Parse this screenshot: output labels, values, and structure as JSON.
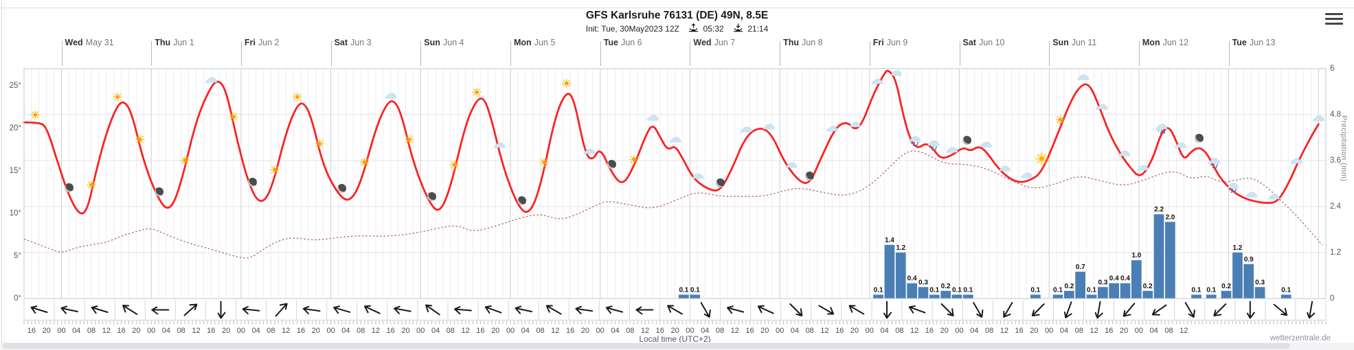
{
  "header": {
    "title": "GFS Karlsruhe 76131 (DE) 49N, 8.5E",
    "init_label": "Init: Tue, 30May2023 12Z",
    "sunrise_time": "05:32",
    "sunset_time": "21:14"
  },
  "watermark": {
    "text": "wetterzentrale.de"
  },
  "days": [
    {
      "name": "Wed",
      "date": "May 31"
    },
    {
      "name": "Thu",
      "date": "Jun 1"
    },
    {
      "name": "Fri",
      "date": "Jun 2"
    },
    {
      "name": "Sat",
      "date": "Jun 3"
    },
    {
      "name": "Sun",
      "date": "Jun 4"
    },
    {
      "name": "Mon",
      "date": "Jun 5"
    },
    {
      "name": "Tue",
      "date": "Jun 6"
    },
    {
      "name": "Wed",
      "date": "Jun 7"
    },
    {
      "name": "Thu",
      "date": "Jun 8"
    },
    {
      "name": "Fri",
      "date": "Jun 9"
    },
    {
      "name": "Sat",
      "date": "Jun 10"
    },
    {
      "name": "Sun",
      "date": "Jun 11"
    },
    {
      "name": "Mon",
      "date": "Jun 12"
    },
    {
      "name": "Tue",
      "date": "Jun 13"
    }
  ],
  "y_axis_left": {
    "unit": "°C",
    "ticks": [
      [
        25,
        "25°"
      ],
      [
        20,
        "20°"
      ],
      [
        15,
        "15°"
      ],
      [
        10,
        "10°"
      ],
      [
        5,
        "5°"
      ],
      [
        0,
        "0°"
      ]
    ]
  },
  "y_axis_right": {
    "caption": "Precipitation (mm)",
    "ticks": [
      [
        6,
        "6"
      ],
      [
        4.8,
        "4.8"
      ],
      [
        3.6,
        "3.6"
      ],
      [
        2.4,
        "2.4"
      ],
      [
        1.2,
        "1.2"
      ],
      [
        0,
        "0"
      ]
    ]
  },
  "x_axis": {
    "caption": "Local time (UTC+2)",
    "hour_labels": [
      "16",
      "20",
      "00",
      "04",
      "08",
      "12",
      "16",
      "20",
      "00",
      "04",
      "08",
      "12",
      "16",
      "20",
      "00",
      "04",
      "08",
      "12",
      "16",
      "20",
      "00",
      "04",
      "08",
      "12",
      "16",
      "20",
      "00",
      "04",
      "08",
      "12",
      "16",
      "20",
      "00",
      "04",
      "08",
      "12",
      "16",
      "20",
      "00",
      "04",
      "08",
      "12",
      "16",
      "20",
      "00",
      "04",
      "08",
      "12",
      "16",
      "20",
      "00",
      "04",
      "08",
      "12",
      "16",
      "20",
      "00",
      "04",
      "08",
      "12",
      "16",
      "20",
      "00",
      "04",
      "08",
      "12",
      "16",
      "20",
      "00",
      "04",
      "08",
      "12",
      "16",
      "20",
      "00",
      "04",
      "08",
      "12"
    ]
  },
  "colors": {
    "temperature_line": "#fb2222",
    "dewpoint_line": "#b06b6b",
    "precip_bar": "#4a7fb5",
    "grid_minor": "#ededf2",
    "grid_day": "#cdcdd6",
    "plot_border": "#bcc7d0"
  },
  "chart_data": {
    "type": "meteogram (line + bar)",
    "model": "GFS",
    "station": "Karlsruhe 76131 (DE) 49N, 8.5E",
    "time_axis": {
      "start": "Tue May 30 14:00 local (UTC+2)",
      "hours_span": 348,
      "hour_label_step": 4,
      "first_label_offset_h": 2
    },
    "temp_axis_c": {
      "min": 0,
      "max": 27,
      "tick_step": 5
    },
    "precip_axis_mm": {
      "min": 0,
      "max": 6,
      "tick_step": 1.2
    },
    "temperature_c": [
      [
        0,
        20.7
      ],
      [
        4,
        20.7
      ],
      [
        6,
        20.2
      ],
      [
        9,
        16
      ],
      [
        12,
        12
      ],
      [
        15,
        9.7
      ],
      [
        17,
        10.5
      ],
      [
        19,
        14.5
      ],
      [
        22,
        19.5
      ],
      [
        25,
        22.8
      ],
      [
        27,
        23.2
      ],
      [
        29,
        21.5
      ],
      [
        32,
        16
      ],
      [
        36,
        11.5
      ],
      [
        39,
        10.2
      ],
      [
        42,
        13.5
      ],
      [
        46,
        21
      ],
      [
        50,
        25
      ],
      [
        52,
        25.7
      ],
      [
        54,
        24.5
      ],
      [
        57,
        18.5
      ],
      [
        60,
        13.5
      ],
      [
        63,
        11
      ],
      [
        66,
        12.5
      ],
      [
        70,
        19.5
      ],
      [
        73,
        22.8
      ],
      [
        75,
        23
      ],
      [
        77,
        21
      ],
      [
        80,
        15.5
      ],
      [
        84,
        12.2
      ],
      [
        87,
        11.3
      ],
      [
        90,
        13.5
      ],
      [
        94,
        20
      ],
      [
        97,
        23
      ],
      [
        99,
        23.3
      ],
      [
        101,
        21.5
      ],
      [
        104,
        16
      ],
      [
        108,
        11.5
      ],
      [
        111,
        9.9
      ],
      [
        114,
        13
      ],
      [
        118,
        20.5
      ],
      [
        121,
        23.4
      ],
      [
        123,
        23.6
      ],
      [
        125,
        21
      ],
      [
        128,
        15.5
      ],
      [
        132,
        10.8
      ],
      [
        135,
        9.8
      ],
      [
        138,
        13
      ],
      [
        142,
        21.5
      ],
      [
        145,
        24.4
      ],
      [
        147,
        23.5
      ],
      [
        150,
        17
      ],
      [
        152,
        16.2
      ],
      [
        154,
        17.8
      ],
      [
        157,
        14.8
      ],
      [
        160,
        13.2
      ],
      [
        163,
        15.5
      ],
      [
        166,
        19
      ],
      [
        168,
        20.6
      ],
      [
        170,
        19
      ],
      [
        172,
        17.4
      ],
      [
        174,
        18
      ],
      [
        176,
        16.5
      ],
      [
        179,
        14
      ],
      [
        183,
        12.8
      ],
      [
        186,
        12.6
      ],
      [
        189,
        15
      ],
      [
        193,
        19.2
      ],
      [
        197,
        20.2
      ],
      [
        200,
        19.2
      ],
      [
        203,
        16.2
      ],
      [
        207,
        13.8
      ],
      [
        210,
        13.4
      ],
      [
        213,
        16.5
      ],
      [
        217,
        20.2
      ],
      [
        220,
        20.8
      ],
      [
        222,
        19.8
      ],
      [
        224,
        20.5
      ],
      [
        227,
        24
      ],
      [
        230,
        26.5
      ],
      [
        231,
        26.9
      ],
      [
        233,
        25.8
      ],
      [
        235,
        21.5
      ],
      [
        237,
        18.5
      ],
      [
        239,
        17.6
      ],
      [
        241,
        18.3
      ],
      [
        243,
        17.6
      ],
      [
        245,
        16.4
      ],
      [
        248,
        16.8
      ],
      [
        251,
        17.8
      ],
      [
        253,
        17.3
      ],
      [
        255,
        17.9
      ],
      [
        257,
        17.4
      ],
      [
        260,
        15.5
      ],
      [
        263,
        14.2
      ],
      [
        266,
        13.6
      ],
      [
        269,
        13.9
      ],
      [
        272,
        14.8
      ],
      [
        276,
        19
      ],
      [
        280,
        23.5
      ],
      [
        283,
        25.3
      ],
      [
        285,
        25
      ],
      [
        287,
        23
      ],
      [
        290,
        19.5
      ],
      [
        293,
        17
      ],
      [
        296,
        15.2
      ],
      [
        298,
        14.3
      ],
      [
        300,
        15
      ],
      [
        302,
        16.8
      ],
      [
        304,
        19.5
      ],
      [
        306,
        20.3
      ],
      [
        308,
        18.5
      ],
      [
        310,
        16.2
      ],
      [
        312,
        17.3
      ],
      [
        314,
        17.8
      ],
      [
        316,
        17.2
      ],
      [
        318,
        15.5
      ],
      [
        320,
        14
      ],
      [
        323,
        12.6
      ],
      [
        326,
        11.8
      ],
      [
        329,
        11.4
      ],
      [
        332,
        11.2
      ],
      [
        335,
        11.3
      ],
      [
        338,
        13.5
      ],
      [
        341,
        16.5
      ],
      [
        344,
        19
      ],
      [
        346,
        20.5
      ]
    ],
    "dewpoint_c": [
      [
        0,
        7
      ],
      [
        6,
        6
      ],
      [
        10,
        5.3
      ],
      [
        14,
        6
      ],
      [
        18,
        6.3
      ],
      [
        22,
        6.6
      ],
      [
        27,
        7.5
      ],
      [
        31,
        8
      ],
      [
        34,
        8.3
      ],
      [
        38,
        7.5
      ],
      [
        44,
        6.5
      ],
      [
        50,
        5.8
      ],
      [
        56,
        5
      ],
      [
        60,
        4.6
      ],
      [
        64,
        5.8
      ],
      [
        68,
        6.8
      ],
      [
        72,
        7.2
      ],
      [
        78,
        6.8
      ],
      [
        84,
        7.2
      ],
      [
        90,
        7.4
      ],
      [
        96,
        7.3
      ],
      [
        102,
        7.5
      ],
      [
        108,
        8
      ],
      [
        112,
        8.4
      ],
      [
        116,
        8.6
      ],
      [
        120,
        7.8
      ],
      [
        126,
        8.5
      ],
      [
        132,
        9.4
      ],
      [
        138,
        10
      ],
      [
        143,
        9.2
      ],
      [
        148,
        9.9
      ],
      [
        153,
        11
      ],
      [
        156,
        11.5
      ],
      [
        162,
        11
      ],
      [
        168,
        10.5
      ],
      [
        174,
        11.5
      ],
      [
        180,
        12.6
      ],
      [
        186,
        12
      ],
      [
        192,
        12
      ],
      [
        198,
        12
      ],
      [
        204,
        12.8
      ],
      [
        208,
        13
      ],
      [
        214,
        12.4
      ],
      [
        220,
        12
      ],
      [
        226,
        13.2
      ],
      [
        231,
        15.3
      ],
      [
        236,
        17.4
      ],
      [
        240,
        17.3
      ],
      [
        246,
        15.8
      ],
      [
        252,
        15.8
      ],
      [
        258,
        15.2
      ],
      [
        264,
        13.8
      ],
      [
        270,
        12.8
      ],
      [
        276,
        13.5
      ],
      [
        282,
        14.5
      ],
      [
        288,
        13.8
      ],
      [
        294,
        13.2
      ],
      [
        300,
        14
      ],
      [
        304,
        14.7
      ],
      [
        308,
        15
      ],
      [
        312,
        14
      ],
      [
        316,
        14.5
      ],
      [
        320,
        13.6
      ],
      [
        324,
        13.9
      ],
      [
        328,
        14.3
      ],
      [
        332,
        13.2
      ],
      [
        336,
        11.5
      ],
      [
        340,
        9.8
      ],
      [
        344,
        7.8
      ],
      [
        347,
        6.3
      ]
    ],
    "precip_bin_hours": 3,
    "precip_mm_3h": [
      [
        175,
        0.1
      ],
      [
        178,
        0.1
      ],
      [
        227,
        0.1
      ],
      [
        230,
        1.4
      ],
      [
        233,
        1.2
      ],
      [
        236,
        0.4
      ],
      [
        239,
        0.3
      ],
      [
        242,
        0.1
      ],
      [
        245,
        0.2
      ],
      [
        248,
        0.1
      ],
      [
        251,
        0.1
      ],
      [
        269,
        0.1
      ],
      [
        275,
        0.1
      ],
      [
        278,
        0.2
      ],
      [
        281,
        0.7
      ],
      [
        284,
        0.1
      ],
      [
        287,
        0.3
      ],
      [
        290,
        0.4
      ],
      [
        293,
        0.4
      ],
      [
        296,
        1.0
      ],
      [
        299,
        0.2
      ],
      [
        302,
        2.2
      ],
      [
        305,
        2.0
      ],
      [
        312,
        0.1
      ],
      [
        316,
        0.1
      ],
      [
        320,
        0.2
      ],
      [
        323,
        1.2
      ],
      [
        326,
        0.9
      ],
      [
        329,
        0.3
      ],
      [
        336,
        0.1
      ]
    ],
    "wind_arrows_deg": [
      197,
      192,
      197,
      212,
      180,
      318,
      90,
      186,
      312,
      188,
      196,
      205,
      190,
      215,
      185,
      200,
      192,
      210,
      188,
      195,
      180,
      210,
      60,
      195,
      205,
      45,
      30,
      210,
      90,
      200,
      45,
      60,
      120,
      135,
      110,
      100,
      130,
      145,
      60,
      135,
      90,
      40,
      100
    ],
    "icons": [
      [
        3,
        "sun"
      ],
      [
        12,
        "moon"
      ],
      [
        18,
        "sun"
      ],
      [
        25,
        "sun"
      ],
      [
        31,
        "sun"
      ],
      [
        36,
        "moon"
      ],
      [
        43,
        "sun"
      ],
      [
        50,
        "cloud"
      ],
      [
        56,
        "sun"
      ],
      [
        61,
        "moon"
      ],
      [
        67,
        "sun"
      ],
      [
        73,
        "sun"
      ],
      [
        79,
        "sun"
      ],
      [
        85,
        "moon"
      ],
      [
        91,
        "sun"
      ],
      [
        98,
        "cloud"
      ],
      [
        103,
        "sun"
      ],
      [
        109,
        "moon"
      ],
      [
        115,
        "sun"
      ],
      [
        121,
        "sun"
      ],
      [
        127,
        "cloud"
      ],
      [
        133,
        "moon"
      ],
      [
        139,
        "sun"
      ],
      [
        145,
        "sun"
      ],
      [
        151,
        "cloud"
      ],
      [
        157,
        "moon"
      ],
      [
        163,
        "sun"
      ],
      [
        168,
        "cloud"
      ],
      [
        174,
        "cloud"
      ],
      [
        180,
        "cloud"
      ],
      [
        186,
        "moon"
      ],
      [
        193,
        "cloud"
      ],
      [
        199,
        "cloud"
      ],
      [
        205,
        "cloud"
      ],
      [
        210,
        "moon"
      ],
      [
        216,
        "cloud"
      ],
      [
        222,
        "cloud"
      ],
      [
        228,
        "cloud"
      ],
      [
        233,
        "cloud"
      ],
      [
        238,
        "rain"
      ],
      [
        243,
        "rain"
      ],
      [
        248,
        "cloud"
      ],
      [
        252,
        "moon"
      ],
      [
        257,
        "cloud"
      ],
      [
        262,
        "cloud"
      ],
      [
        268,
        "cloud"
      ],
      [
        272,
        "sun2"
      ],
      [
        277,
        "sun"
      ],
      [
        283,
        "cloud"
      ],
      [
        288,
        "cloud"
      ],
      [
        294,
        "cloud"
      ],
      [
        299,
        "cloud"
      ],
      [
        304,
        "rain"
      ],
      [
        309,
        "cloud"
      ],
      [
        314,
        "moon"
      ],
      [
        318,
        "rain"
      ],
      [
        323,
        "rain"
      ],
      [
        328,
        "cloud"
      ],
      [
        334,
        "cloud"
      ],
      [
        340,
        "cloud"
      ],
      [
        346,
        "cloud"
      ]
    ]
  }
}
